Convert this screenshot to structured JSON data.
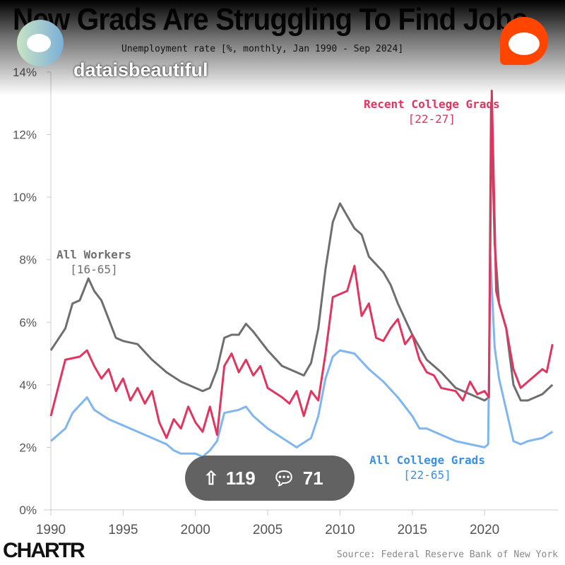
{
  "title": "New Grads Are Struggling To Find Jobs",
  "subtitle": "Unemployment rate [%, monthly, Jan 1990 - Sep 2024]",
  "source": "Source: Federal Reserve Bank of New York",
  "logo": "CHARTR",
  "overlay": {
    "subreddit": "dataisbeautiful",
    "upvotes": "119",
    "comments": "71"
  },
  "colors": {
    "all_workers": "#6e6e6e",
    "recent_grads": "#e0355f",
    "all_grads": "#7fb6ee"
  },
  "chart_data": {
    "type": "line",
    "title": "New Grads Are Struggling To Find Jobs",
    "ylabel": "Unemployment rate (%)",
    "xlim": [
      1990,
      2024.75
    ],
    "ylim": [
      0,
      14
    ],
    "yticks": [
      "0%",
      "2%",
      "4%",
      "6%",
      "8%",
      "10%",
      "12%",
      "14%"
    ],
    "xticks": [
      "1990",
      "1995",
      "2000",
      "2005",
      "2010",
      "2015",
      "2020"
    ],
    "series": [
      {
        "name": "All Workers",
        "range": "[16-65]",
        "key": "all_workers",
        "x": [
          1990,
          1991,
          1991.5,
          1992,
          1992.6,
          1993,
          1993.5,
          1994,
          1994.5,
          1995,
          1996,
          1997,
          1998,
          1999,
          2000,
          2000.5,
          2001,
          2001.5,
          2002,
          2002.5,
          2003,
          2003.5,
          2004,
          2004.5,
          2005,
          2006,
          2007,
          2007.5,
          2008,
          2008.5,
          2009,
          2009.5,
          2010,
          2010.5,
          2011,
          2011.5,
          2012,
          2013,
          2013.5,
          2014,
          2015,
          2016,
          2017,
          2018,
          2019,
          2020,
          2020.3,
          2020.45,
          2020.7,
          2021,
          2021.5,
          2022,
          2022.5,
          2023,
          2024,
          2024.7
        ],
        "y": [
          5.1,
          5.8,
          6.6,
          6.7,
          7.4,
          7.0,
          6.7,
          6.1,
          5.5,
          5.4,
          5.3,
          4.8,
          4.4,
          4.1,
          3.9,
          3.8,
          3.9,
          4.5,
          5.5,
          5.6,
          5.6,
          5.95,
          5.7,
          5.4,
          5.1,
          4.6,
          4.4,
          4.3,
          4.7,
          5.8,
          7.7,
          9.2,
          9.8,
          9.4,
          9.0,
          8.8,
          8.1,
          7.6,
          7.2,
          6.6,
          5.6,
          4.8,
          4.4,
          3.9,
          3.7,
          3.5,
          3.6,
          13.0,
          8.5,
          6.6,
          5.8,
          4.0,
          3.5,
          3.5,
          3.7,
          4.0
        ]
      },
      {
        "name": "Recent College Grads",
        "range": "[22-27]",
        "key": "recent_grads",
        "x": [
          1990,
          1990.5,
          1991,
          1992,
          1992.5,
          1993,
          1993.5,
          1994,
          1994.5,
          1995,
          1995.5,
          1996,
          1996.5,
          1997,
          1997.5,
          1998,
          1998.5,
          1999,
          1999.5,
          2000,
          2000.5,
          2001,
          2001.5,
          2002,
          2002.5,
          2003,
          2003.5,
          2004,
          2004.5,
          2005,
          2006,
          2006.5,
          2007,
          2007.5,
          2008,
          2008.5,
          2009,
          2009.5,
          2010,
          2010.5,
          2011,
          2011.5,
          2012,
          2012.5,
          2013,
          2013.5,
          2014,
          2014.5,
          2015,
          2015.5,
          2016,
          2016.5,
          2017,
          2018,
          2018.5,
          2019,
          2019.5,
          2020,
          2020.3,
          2020.5,
          2020.8,
          2021,
          2021.5,
          2022,
          2022.5,
          2023,
          2023.5,
          2024,
          2024.3,
          2024.7
        ],
        "y": [
          3.0,
          3.9,
          4.8,
          4.9,
          5.1,
          4.6,
          4.2,
          4.5,
          3.8,
          4.2,
          3.5,
          3.9,
          3.4,
          3.8,
          2.8,
          2.3,
          2.9,
          2.6,
          3.3,
          2.8,
          2.5,
          3.3,
          2.4,
          4.6,
          5.0,
          4.4,
          4.8,
          4.3,
          4.6,
          3.9,
          3.6,
          3.4,
          3.8,
          3.0,
          3.8,
          3.5,
          5.0,
          6.8,
          6.9,
          7.0,
          7.8,
          6.2,
          6.6,
          5.5,
          5.4,
          5.8,
          6.1,
          5.3,
          5.6,
          4.8,
          4.4,
          4.3,
          3.9,
          3.8,
          3.5,
          4.1,
          3.7,
          3.8,
          3.6,
          13.4,
          7.0,
          6.6,
          5.8,
          4.5,
          3.9,
          4.1,
          4.3,
          4.5,
          4.4,
          5.3
        ]
      },
      {
        "name": "All College Grads",
        "range": "[22-65]",
        "key": "all_grads",
        "x": [
          1990,
          1991,
          1991.5,
          1992.5,
          1993,
          1994,
          1995,
          1996,
          1997,
          1998,
          1998.5,
          1999,
          2000,
          2000.5,
          2001,
          2001.5,
          2002,
          2003,
          2003.5,
          2004,
          2005,
          2006,
          2007,
          2008,
          2008.5,
          2009,
          2009.5,
          2010,
          2011,
          2012,
          2013,
          2014,
          2015,
          2015.5,
          2016,
          2017,
          2018,
          2019,
          2020,
          2020.25,
          2020.4,
          2020.7,
          2021,
          2021.5,
          2022,
          2022.5,
          2023,
          2024,
          2024.7
        ],
        "y": [
          2.2,
          2.6,
          3.1,
          3.6,
          3.2,
          2.9,
          2.7,
          2.5,
          2.3,
          2.1,
          1.9,
          1.8,
          1.8,
          1.7,
          1.9,
          2.2,
          3.1,
          3.2,
          3.3,
          3.0,
          2.6,
          2.3,
          2.0,
          2.3,
          3.0,
          4.2,
          4.9,
          5.1,
          5.0,
          4.5,
          4.1,
          3.6,
          3.0,
          2.6,
          2.6,
          2.4,
          2.2,
          2.1,
          2.0,
          2.1,
          8.1,
          5.2,
          4.2,
          3.2,
          2.2,
          2.1,
          2.2,
          2.3,
          2.5
        ]
      }
    ]
  }
}
